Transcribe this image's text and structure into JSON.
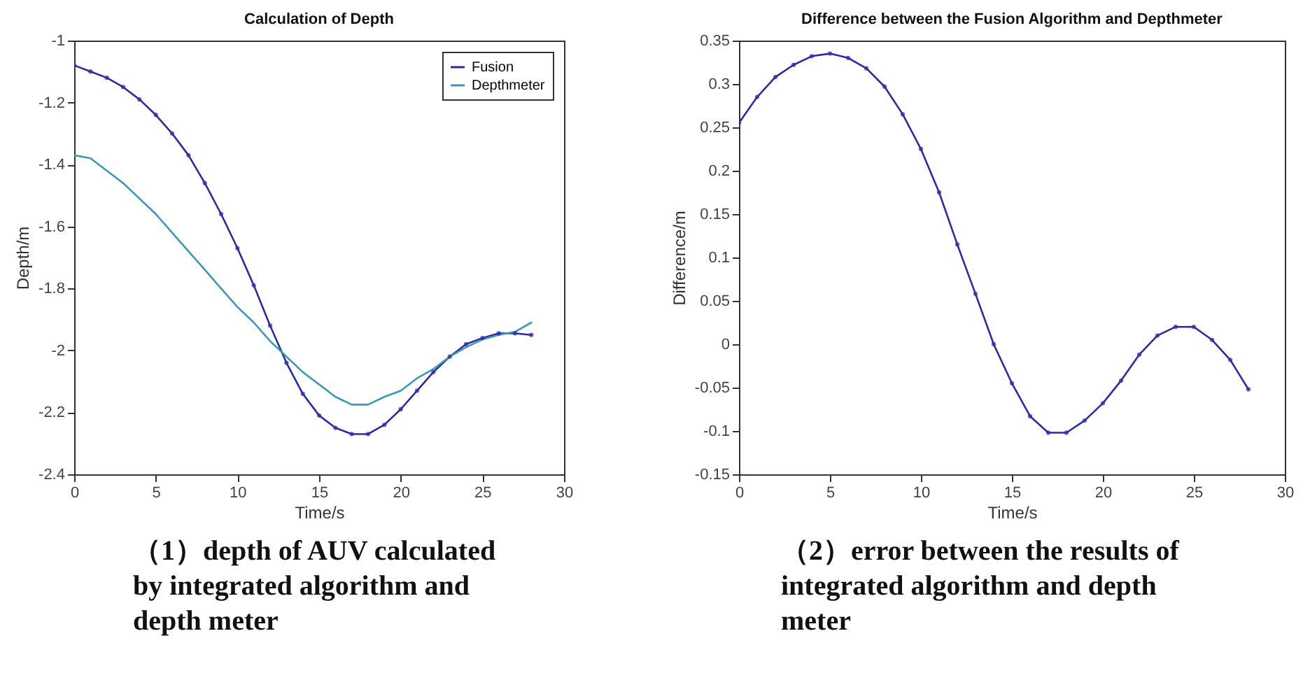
{
  "chart_data": [
    {
      "type": "line",
      "title": "Calculation of Depth",
      "xlabel": "Time/s",
      "ylabel": "Depth/m",
      "legend": "top right",
      "xlim": [
        0,
        30
      ],
      "xticks": [
        0,
        5,
        10,
        15,
        20,
        25,
        30
      ],
      "ylim": [
        -2.4,
        -1
      ],
      "yticks": [
        -2.4,
        -2.2,
        -2,
        -1.8,
        -1.6,
        -1.4,
        -1.2,
        -1
      ],
      "x": [
        0,
        1,
        2,
        3,
        4,
        5,
        6,
        7,
        8,
        9,
        10,
        11,
        12,
        13,
        14,
        15,
        16,
        17,
        18,
        19,
        20,
        21,
        22,
        23,
        24,
        25,
        26,
        27,
        28
      ],
      "series": [
        {
          "name": "Fusion",
          "color": "#2b2ba8",
          "marker": "circle",
          "values": [
            -1.08,
            -1.1,
            -1.12,
            -1.15,
            -1.19,
            -1.24,
            -1.3,
            -1.37,
            -1.46,
            -1.56,
            -1.67,
            -1.79,
            -1.92,
            -2.04,
            -2.14,
            -2.21,
            -2.25,
            -2.27,
            -2.27,
            -2.24,
            -2.19,
            -2.13,
            -2.07,
            -2.02,
            -1.98,
            -1.96,
            -1.945,
            -1.945,
            -1.95
          ]
        },
        {
          "name": "Depthmeter",
          "color": "#3a9ab5",
          "marker": "none",
          "values": [
            -1.37,
            -1.38,
            -1.42,
            -1.46,
            -1.51,
            -1.56,
            -1.62,
            -1.68,
            -1.74,
            -1.8,
            -1.86,
            -1.91,
            -1.97,
            -2.02,
            -2.07,
            -2.11,
            -2.15,
            -2.175,
            -2.175,
            -2.15,
            -2.13,
            -2.09,
            -2.06,
            -2.02,
            -1.99,
            -1.965,
            -1.95,
            -1.94,
            -1.91
          ]
        }
      ],
      "annotations": [
        "（1）depth of AUV calculated by integrated algorithm and depth meter"
      ]
    },
    {
      "type": "line",
      "title": "Difference between the Fusion Algorithm and Depthmeter",
      "xlabel": "Time/s",
      "ylabel": "Difference/m",
      "xlim": [
        0,
        30
      ],
      "xticks": [
        0,
        5,
        10,
        15,
        20,
        25,
        30
      ],
      "ylim": [
        -0.15,
        0.35
      ],
      "yticks": [
        -0.15,
        -0.1,
        -0.05,
        0,
        0.05,
        0.1,
        0.15,
        0.2,
        0.25,
        0.3,
        0.35
      ],
      "x": [
        0,
        1,
        2,
        3,
        4,
        5,
        6,
        7,
        8,
        9,
        10,
        11,
        12,
        13,
        14,
        15,
        16,
        17,
        18,
        19,
        20,
        21,
        22,
        23,
        24,
        25,
        26,
        27,
        28
      ],
      "series": [
        {
          "color": "#2b2ba8",
          "marker": "circle",
          "values": [
            0.255,
            0.285,
            0.308,
            0.322,
            0.332,
            0.335,
            0.33,
            0.318,
            0.297,
            0.265,
            0.225,
            0.175,
            0.115,
            0.058,
            0,
            -0.045,
            -0.083,
            -0.102,
            -0.102,
            -0.088,
            -0.068,
            -0.042,
            -0.012,
            0.01,
            0.02,
            0.02,
            0.005,
            -0.018,
            -0.052
          ]
        }
      ],
      "annotations": [
        "（2）error between the results of integrated algorithm and depth meter"
      ]
    }
  ]
}
